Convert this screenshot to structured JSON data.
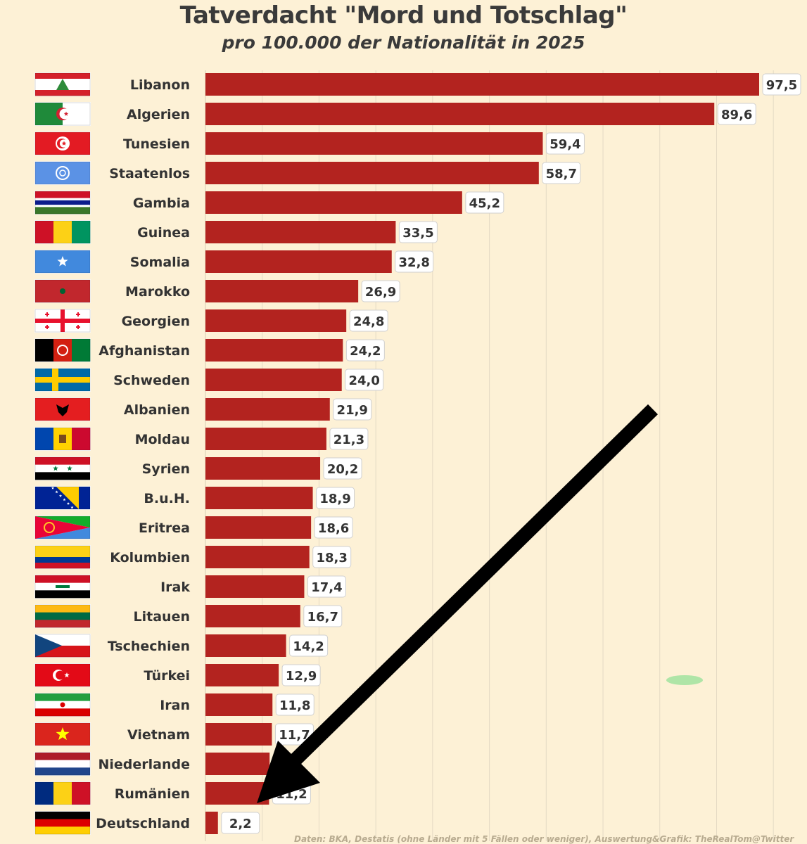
{
  "title": "Tatverdacht \"Mord und Totschlag\"",
  "subtitle": "pro 100.000 der Nationalität in 2025",
  "source": "Daten: BKA, Destatis (ohne Länder mit 5 Fällen oder weniger), Auswertung&Grafik: TheRealTom@Twitter",
  "colors": {
    "background": "#fdf1d6",
    "bar": "#b3231f",
    "label_box": "#ffffff",
    "arrow": "#000000"
  },
  "chart_data": {
    "type": "bar",
    "orientation": "horizontal",
    "title": "Tatverdacht \"Mord und Totschlag\"",
    "subtitle": "pro 100.000 der Nationalität in 2025",
    "categories": [
      "Libanon",
      "Algerien",
      "Tunesien",
      "Staatenlos",
      "Gambia",
      "Guinea",
      "Somalia",
      "Marokko",
      "Georgien",
      "Afghanistan",
      "Schweden",
      "Albanien",
      "Moldau",
      "Syrien",
      "B.u.H.",
      "Eritrea",
      "Kolumbien",
      "Irak",
      "Litauen",
      "Tschechien",
      "Türkei",
      "Iran",
      "Vietnam",
      "Niederlande",
      "Rumänien",
      "Deutschland"
    ],
    "values": [
      97.5,
      89.6,
      59.4,
      58.7,
      45.2,
      33.5,
      32.8,
      26.9,
      24.8,
      24.2,
      24.0,
      21.9,
      21.3,
      20.2,
      18.9,
      18.6,
      18.3,
      17.4,
      16.7,
      14.2,
      12.9,
      11.8,
      11.7,
      11.3,
      11.2,
      2.2
    ],
    "value_labels": [
      "97,5",
      "89,6",
      "59,4",
      "58,7",
      "45,2",
      "33,5",
      "32,8",
      "26,9",
      "24,8",
      "24,2",
      "24,0",
      "21,9",
      "21,3",
      "20,2",
      "18,9",
      "18,6",
      "18,3",
      "17,4",
      "16,7",
      "14,2",
      "12,9",
      "11,8",
      "11,7",
      "",
      "11,2",
      "2,2"
    ],
    "flag_icons": [
      "flag-lebanon-icon",
      "flag-algeria-icon",
      "flag-tunisia-icon",
      "flag-un-icon",
      "flag-gambia-icon",
      "flag-guinea-icon",
      "flag-somalia-icon",
      "flag-morocco-icon",
      "flag-georgia-icon",
      "flag-afghanistan-icon",
      "flag-sweden-icon",
      "flag-albania-icon",
      "flag-moldova-icon",
      "flag-syria-icon",
      "flag-bosnia-icon",
      "flag-eritrea-icon",
      "flag-colombia-icon",
      "flag-iraq-icon",
      "flag-lithuania-icon",
      "flag-czechia-icon",
      "flag-turkey-icon",
      "flag-iran-icon",
      "flag-vietnam-icon",
      "flag-netherlands-icon",
      "flag-romania-icon",
      "flag-germany-icon"
    ],
    "xlim": [
      0,
      100
    ],
    "grid": true,
    "legend": "none",
    "annotation": "black arrow pointing to Rumänien bar"
  }
}
